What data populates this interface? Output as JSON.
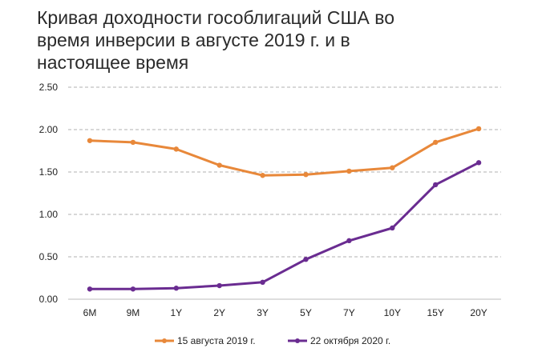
{
  "chart_data": {
    "type": "line",
    "title_lines": [
      "Кривая доходности гособлигаций США во",
      "время инверсии в августе 2019 г. и в",
      "настоящее время"
    ],
    "categories": [
      "6M",
      "9M",
      "1Y",
      "2Y",
      "3Y",
      "5Y",
      "7Y",
      "10Y",
      "15Y",
      "20Y"
    ],
    "y_ticks": [
      "0.00",
      "0.50",
      "1.00",
      "1.50",
      "2.00",
      "2.50"
    ],
    "ylim": [
      0,
      2.5
    ],
    "grid": true,
    "legend_position": "bottom",
    "series": [
      {
        "name": "15 августа  2019 г.",
        "color": "#e8883a",
        "values": [
          1.87,
          1.85,
          1.77,
          1.58,
          1.46,
          1.47,
          1.51,
          1.55,
          1.85,
          2.01
        ]
      },
      {
        "name": "22 октября  2020 г.",
        "color": "#6a2c91",
        "values": [
          0.12,
          0.12,
          0.13,
          0.16,
          0.2,
          0.47,
          0.69,
          0.84,
          1.35,
          1.61
        ]
      }
    ]
  }
}
